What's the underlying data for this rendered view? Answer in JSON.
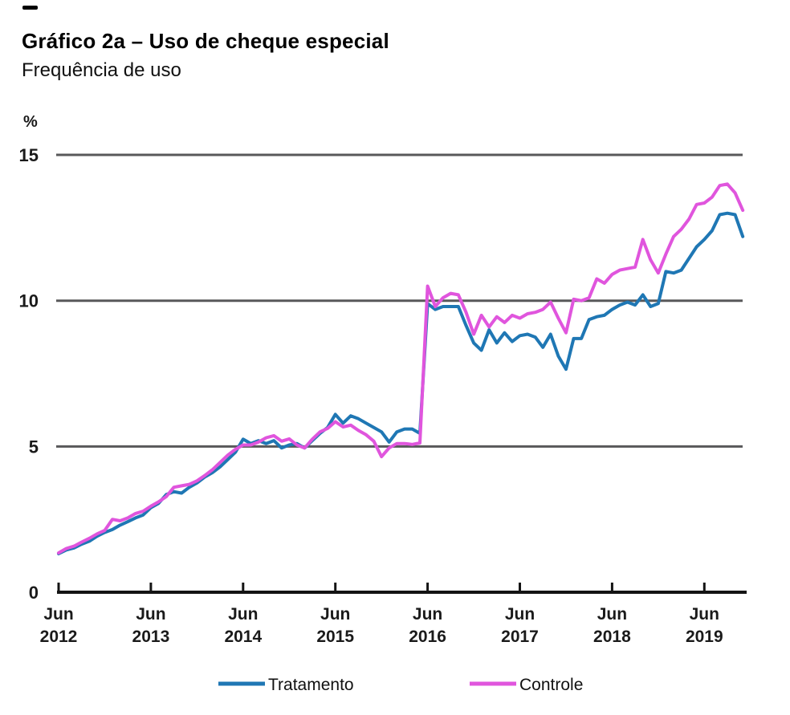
{
  "header": {
    "title": "Gráfico 2a – Uso de cheque especial",
    "subtitle": "Frequência de uso"
  },
  "chart_data": {
    "type": "line",
    "title": "Gráfico 2a – Uso de cheque especial",
    "subtitle": "Frequência de uso",
    "unit_label": "%",
    "ylim": [
      0,
      15
    ],
    "y_ticks": [
      {
        "label": "0",
        "value": 0
      },
      {
        "label": "5",
        "value": 5
      },
      {
        "label": "10",
        "value": 10
      },
      {
        "label": "15",
        "value": 15
      }
    ],
    "y_gridline_values": [
      5,
      10,
      15
    ],
    "grid": "horizontal-only",
    "legend_position": "bottom",
    "x_tick_labels": [
      {
        "month": "Jun",
        "year": "2012"
      },
      {
        "month": "Jun",
        "year": "2013"
      },
      {
        "month": "Jun",
        "year": "2014"
      },
      {
        "month": "Jun",
        "year": "2015"
      },
      {
        "month": "Jun",
        "year": "2016"
      },
      {
        "month": "Jun",
        "year": "2017"
      },
      {
        "month": "Jun",
        "year": "2018"
      },
      {
        "month": "Jun",
        "year": "2019"
      }
    ],
    "x_months": [
      "2012-06",
      "2012-07",
      "2012-08",
      "2012-09",
      "2012-10",
      "2012-11",
      "2012-12",
      "2013-01",
      "2013-02",
      "2013-03",
      "2013-04",
      "2013-05",
      "2013-06",
      "2013-07",
      "2013-08",
      "2013-09",
      "2013-10",
      "2013-11",
      "2013-12",
      "2014-01",
      "2014-02",
      "2014-03",
      "2014-04",
      "2014-05",
      "2014-06",
      "2014-07",
      "2014-08",
      "2014-09",
      "2014-10",
      "2014-11",
      "2014-12",
      "2015-01",
      "2015-02",
      "2015-03",
      "2015-04",
      "2015-05",
      "2015-06",
      "2015-07",
      "2015-08",
      "2015-09",
      "2015-10",
      "2015-11",
      "2015-12",
      "2016-01",
      "2016-02",
      "2016-03",
      "2016-04",
      "2016-05",
      "2016-06",
      "2016-07",
      "2016-08",
      "2016-09",
      "2016-10",
      "2016-11",
      "2016-12",
      "2017-01",
      "2017-02",
      "2017-03",
      "2017-04",
      "2017-05",
      "2017-06",
      "2017-07",
      "2017-08",
      "2017-09",
      "2017-10",
      "2017-11",
      "2017-12",
      "2018-01",
      "2018-02",
      "2018-03",
      "2018-04",
      "2018-05",
      "2018-06",
      "2018-07",
      "2018-08",
      "2018-09",
      "2018-10",
      "2018-11",
      "2018-12",
      "2019-01",
      "2019-02",
      "2019-03",
      "2019-04",
      "2019-05",
      "2019-06",
      "2019-07",
      "2019-08",
      "2019-09",
      "2019-10",
      "2019-11"
    ],
    "series": [
      {
        "name": "Tratamento",
        "color": "#1f77b4",
        "values": [
          1.32,
          1.45,
          1.52,
          1.65,
          1.75,
          1.92,
          2.05,
          2.15,
          2.3,
          2.42,
          2.55,
          2.65,
          2.9,
          3.05,
          3.35,
          3.45,
          3.4,
          3.6,
          3.75,
          3.95,
          4.1,
          4.3,
          4.55,
          4.8,
          5.25,
          5.1,
          5.2,
          5.1,
          5.2,
          4.95,
          5.05,
          5.1,
          4.95,
          5.2,
          5.45,
          5.65,
          6.1,
          5.8,
          6.05,
          5.95,
          5.8,
          5.65,
          5.5,
          5.15,
          5.5,
          5.6,
          5.6,
          5.45,
          9.9,
          9.7,
          9.8,
          9.8,
          9.8,
          9.15,
          8.55,
          8.3,
          9.0,
          8.55,
          8.9,
          8.6,
          8.8,
          8.85,
          8.75,
          8.4,
          8.85,
          8.1,
          7.65,
          8.7,
          8.7,
          9.35,
          9.45,
          9.5,
          9.7,
          9.85,
          9.95,
          9.85,
          10.2,
          9.8,
          9.9,
          11.0,
          10.95,
          11.05,
          11.45,
          11.85,
          12.1,
          12.4,
          12.95,
          13.0,
          12.95,
          12.2
        ]
      },
      {
        "name": "Controle",
        "color": "#e055dd",
        "values": [
          1.35,
          1.5,
          1.58,
          1.72,
          1.85,
          2.0,
          2.12,
          2.5,
          2.45,
          2.55,
          2.7,
          2.78,
          2.95,
          3.1,
          3.28,
          3.6,
          3.65,
          3.7,
          3.82,
          4.0,
          4.2,
          4.45,
          4.7,
          4.9,
          5.05,
          5.05,
          5.15,
          5.3,
          5.37,
          5.18,
          5.26,
          5.05,
          4.95,
          5.25,
          5.5,
          5.62,
          5.85,
          5.67,
          5.73,
          5.55,
          5.4,
          5.18,
          4.65,
          4.95,
          5.1,
          5.1,
          5.07,
          5.12,
          10.5,
          9.8,
          10.1,
          10.25,
          10.2,
          9.6,
          8.85,
          9.5,
          9.1,
          9.45,
          9.25,
          9.5,
          9.4,
          9.55,
          9.6,
          9.7,
          9.95,
          9.4,
          8.9,
          10.05,
          10.0,
          10.1,
          10.75,
          10.6,
          10.9,
          11.05,
          11.1,
          11.15,
          12.1,
          11.4,
          10.95,
          11.6,
          12.2,
          12.45,
          12.8,
          13.3,
          13.35,
          13.55,
          13.95,
          14.0,
          13.7,
          13.1
        ]
      }
    ],
    "colors": {
      "grid": "#58585a",
      "axis": "#141414",
      "text": "#1a1a1a"
    }
  }
}
